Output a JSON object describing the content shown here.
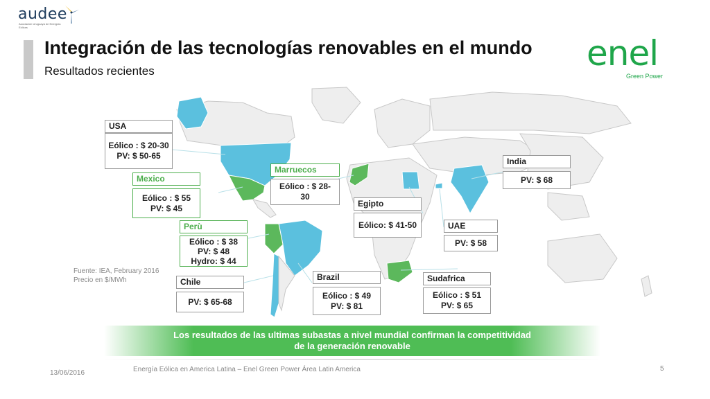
{
  "header": {
    "logo_left_text": "audee",
    "logo_left_sub": "Asociación Uruguaya de Energías Eólicas",
    "title": "Integración de las tecnologías renovables en el mundo",
    "subtitle": "Resultados recientes",
    "logo_right_text": "enel",
    "logo_right_sub": "Green Power"
  },
  "colors": {
    "highlight_country": "#5bc0de",
    "highlight_green": "#5cb85c",
    "map_land": "#eeeeee",
    "banner": "#4fbd55"
  },
  "callouts": {
    "usa": {
      "label": "USA",
      "values": [
        "Eólico : $ 20-30",
        "PV: $ 50-65"
      ]
    },
    "mexico": {
      "label": "Mexico",
      "values": [
        "Eólico : $ 55",
        "PV: $ 45"
      ]
    },
    "peru": {
      "label": "Perù",
      "values": [
        "Eólico : $ 38",
        "PV: $ 48",
        "Hydro: $ 44"
      ]
    },
    "chile": {
      "label": "Chile",
      "values": [
        "PV: $ 65-68"
      ]
    },
    "brazil": {
      "label": "Brazil",
      "values": [
        "Eólico : $ 49",
        "PV: $ 81"
      ]
    },
    "marruecos": {
      "label": "Marruecos",
      "values": [
        "Eólico : $ 28-",
        "30"
      ]
    },
    "egipto": {
      "label": "Egipto",
      "values": [
        "Eólico: $ 41-50"
      ]
    },
    "uae": {
      "label": "UAE",
      "values": [
        "PV: $ 58"
      ]
    },
    "sudafrica": {
      "label": "Sudafrica",
      "values": [
        "Eólico : $ 51",
        "PV: $ 65"
      ]
    },
    "india": {
      "label": "India",
      "values": [
        "PV: $ 68"
      ]
    }
  },
  "source": {
    "line1": "Fuente: IEA, February 2016",
    "line2": "Precio en $/MWh"
  },
  "banner": {
    "line1": "Los resultados de las ultimas subastas a nivel mundial confirman la competitividad",
    "line2": "de la generación renovable"
  },
  "footer": {
    "date": "13/06/2016",
    "text": "Energía Eólica en America Latina – Enel Green Power Área Latin America",
    "page": "5"
  }
}
